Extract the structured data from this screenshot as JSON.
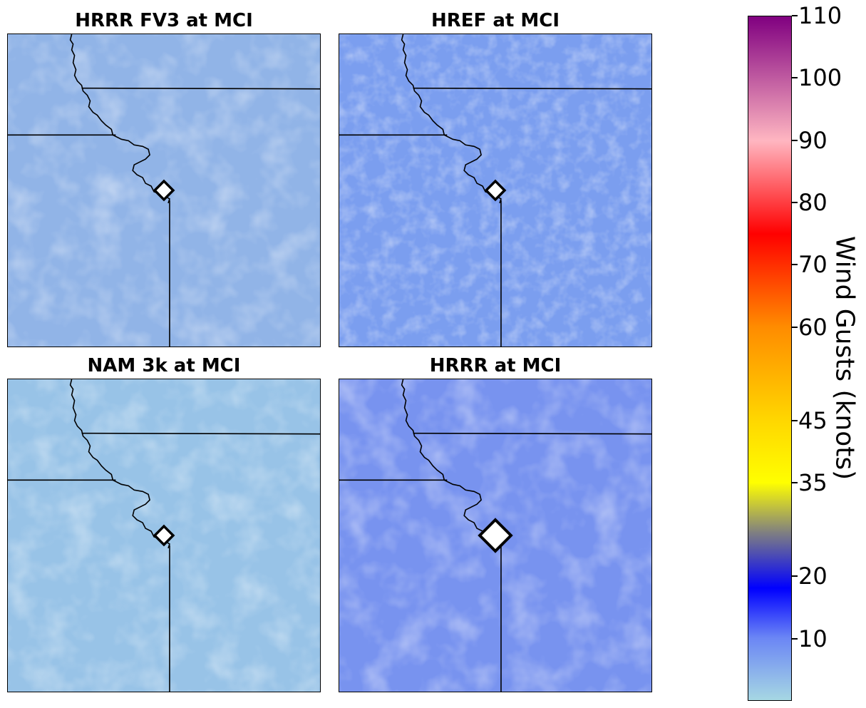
{
  "panels": [
    {
      "title": "HRRR FV3 at MCI",
      "base_color": "#91b4e7",
      "accent_color": "#a3d0e6",
      "marker": "small"
    },
    {
      "title": "HREF at MCI",
      "base_color": "#7b9eef",
      "accent_color": "#96bcee",
      "marker": "small"
    },
    {
      "title": "NAM 3k at MCI",
      "base_color": "#98c3e7",
      "accent_color": "#aedbe3",
      "marker": "small"
    },
    {
      "title": "HRRR at MCI",
      "base_color": "#7893ef",
      "accent_color": "#a8c4ef",
      "marker": "large"
    }
  ],
  "colorbar": {
    "label": "Wind Gusts (knots)",
    "ticks": [
      "110",
      "100",
      "90",
      "80",
      "70",
      "60",
      "45",
      "35",
      "20",
      "10"
    ],
    "tick_values": [
      110,
      100,
      90,
      80,
      70,
      60,
      45,
      35,
      20,
      10
    ],
    "range": [
      0,
      110
    ],
    "colors": {
      "low": "#a6d7e3",
      "light_blue": "#6b86f5",
      "blue": "#0000ff",
      "grey": "#808080",
      "yellow": "#ffff00",
      "gold": "#ffd700",
      "orange": "#ff8c00",
      "red": "#ff0000",
      "pink": "#ffb6c1",
      "purple": "#800080"
    }
  }
}
